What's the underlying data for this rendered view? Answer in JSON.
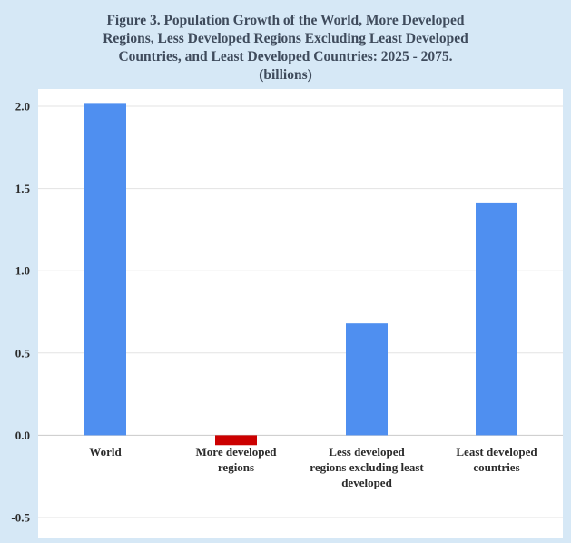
{
  "title_lines": [
    "Figure 3. Population Growth of the World, More Developed",
    "Regions, Less Developed Regions Excluding Least Developed",
    "Countries, and Least Developed Countries: 2025 - 2075.",
    "(billions)"
  ],
  "chart_data": {
    "type": "bar",
    "title": "Figure 3. Population Growth of the World, More Developed Regions, Less Developed Regions Excluding Least Developed Countries, and Least Developed Countries: 2025 - 2075. (billions)",
    "categories": [
      [
        "World"
      ],
      [
        "More developed",
        "regions"
      ],
      [
        "Less developed",
        "regions excluding least",
        "developed"
      ],
      [
        "Least developed",
        "countries"
      ]
    ],
    "values": [
      2.02,
      -0.06,
      0.68,
      1.41
    ],
    "bar_colors": [
      "#4f8ff0",
      "#cc0000",
      "#4f8ff0",
      "#4f8ff0"
    ],
    "ylim": [
      -0.5,
      2.0
    ],
    "y_ticks": [
      "2.0",
      "1.5",
      "1.0",
      "0.5",
      "0.0",
      "-0.5"
    ],
    "y_tick_values": [
      2.0,
      1.5,
      1.0,
      0.5,
      0.0,
      -0.5
    ],
    "xlabel": "",
    "ylabel": "",
    "grid": true,
    "legend": "none"
  }
}
